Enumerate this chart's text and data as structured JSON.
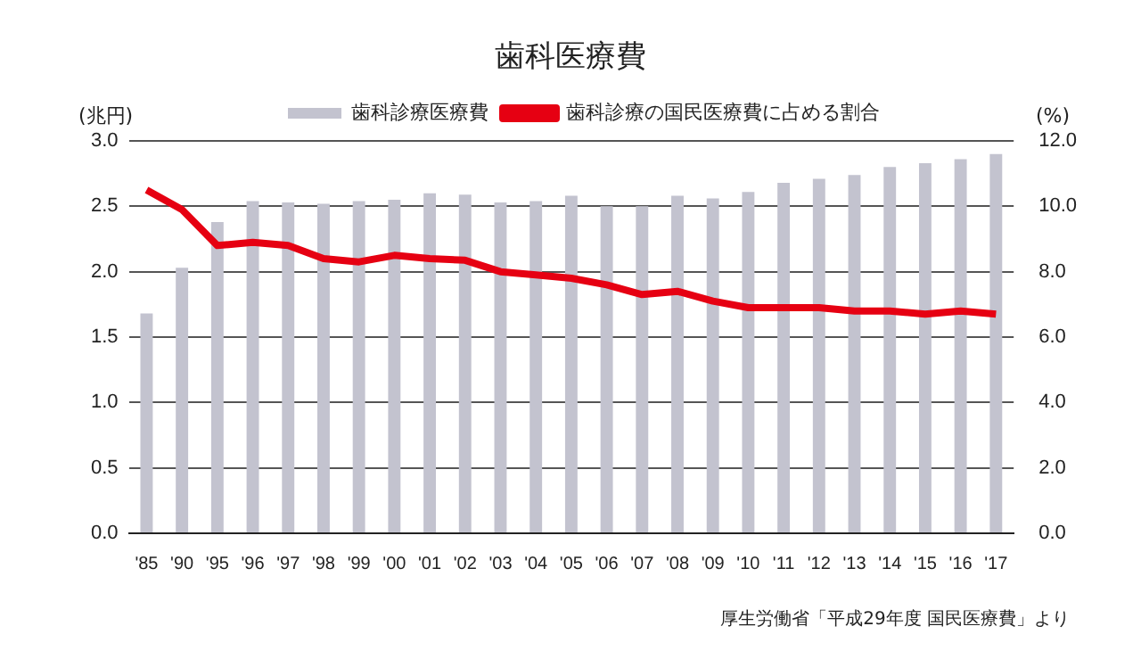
{
  "chart_data": {
    "type": "bar",
    "title": "歯科医療費",
    "ylabel": "(兆円)",
    "y2label": "(%)",
    "categories": [
      "'85",
      "'90",
      "'95",
      "'96",
      "'97",
      "'98",
      "'99",
      "'00",
      "'01",
      "'02",
      "'03",
      "'04",
      "'05",
      "'06",
      "'07",
      "'08",
      "'09",
      "'10",
      "'11",
      "'12",
      "'13",
      "'14",
      "'15",
      "'16",
      "'17"
    ],
    "series": [
      {
        "name": "歯科診療医療費",
        "color": "#c3c3cf",
        "values": [
          1.68,
          2.03,
          2.38,
          2.54,
          2.53,
          2.52,
          2.54,
          2.55,
          2.6,
          2.59,
          2.53,
          2.54,
          2.58,
          2.5,
          2.5,
          2.58,
          2.56,
          2.61,
          2.68,
          2.71,
          2.74,
          2.8,
          2.83,
          2.86,
          2.9
        ]
      },
      {
        "name": "歯科診療の国民医療費に占める割合",
        "type": "line",
        "axis": "y2",
        "color": "#e60012",
        "values": [
          10.5,
          9.9,
          8.8,
          8.9,
          8.8,
          8.4,
          8.3,
          8.5,
          8.4,
          8.35,
          8.0,
          7.9,
          7.8,
          7.6,
          7.3,
          7.4,
          7.1,
          6.9,
          6.9,
          6.9,
          6.8,
          6.8,
          6.7,
          6.8,
          6.7
        ]
      }
    ],
    "ylim": [
      0,
      3
    ],
    "yticks": [
      {
        "value": 0,
        "label": "0.0"
      },
      {
        "value": 0.5,
        "label": "0.5"
      },
      {
        "value": 1,
        "label": "1.0"
      },
      {
        "value": 1.5,
        "label": "1.5"
      },
      {
        "value": 2,
        "label": "2.0"
      },
      {
        "value": 2.5,
        "label": "2.5"
      },
      {
        "value": 3,
        "label": "3.0"
      }
    ],
    "y2lim": [
      0,
      12
    ],
    "y2ticks": [
      {
        "value": 0,
        "label": "0.0"
      },
      {
        "value": 2,
        "label": "2.0"
      },
      {
        "value": 4,
        "label": "4.0"
      },
      {
        "value": 6,
        "label": "6.0"
      },
      {
        "value": 8,
        "label": "8.0"
      },
      {
        "value": 10,
        "label": "10.0"
      },
      {
        "value": 12,
        "label": "12.0"
      }
    ],
    "grid": "y",
    "legend": "top",
    "marker": "none",
    "line_style": "solid",
    "annotations": [
      "厚生労働省「平成29年度 国民医療費」より"
    ]
  }
}
